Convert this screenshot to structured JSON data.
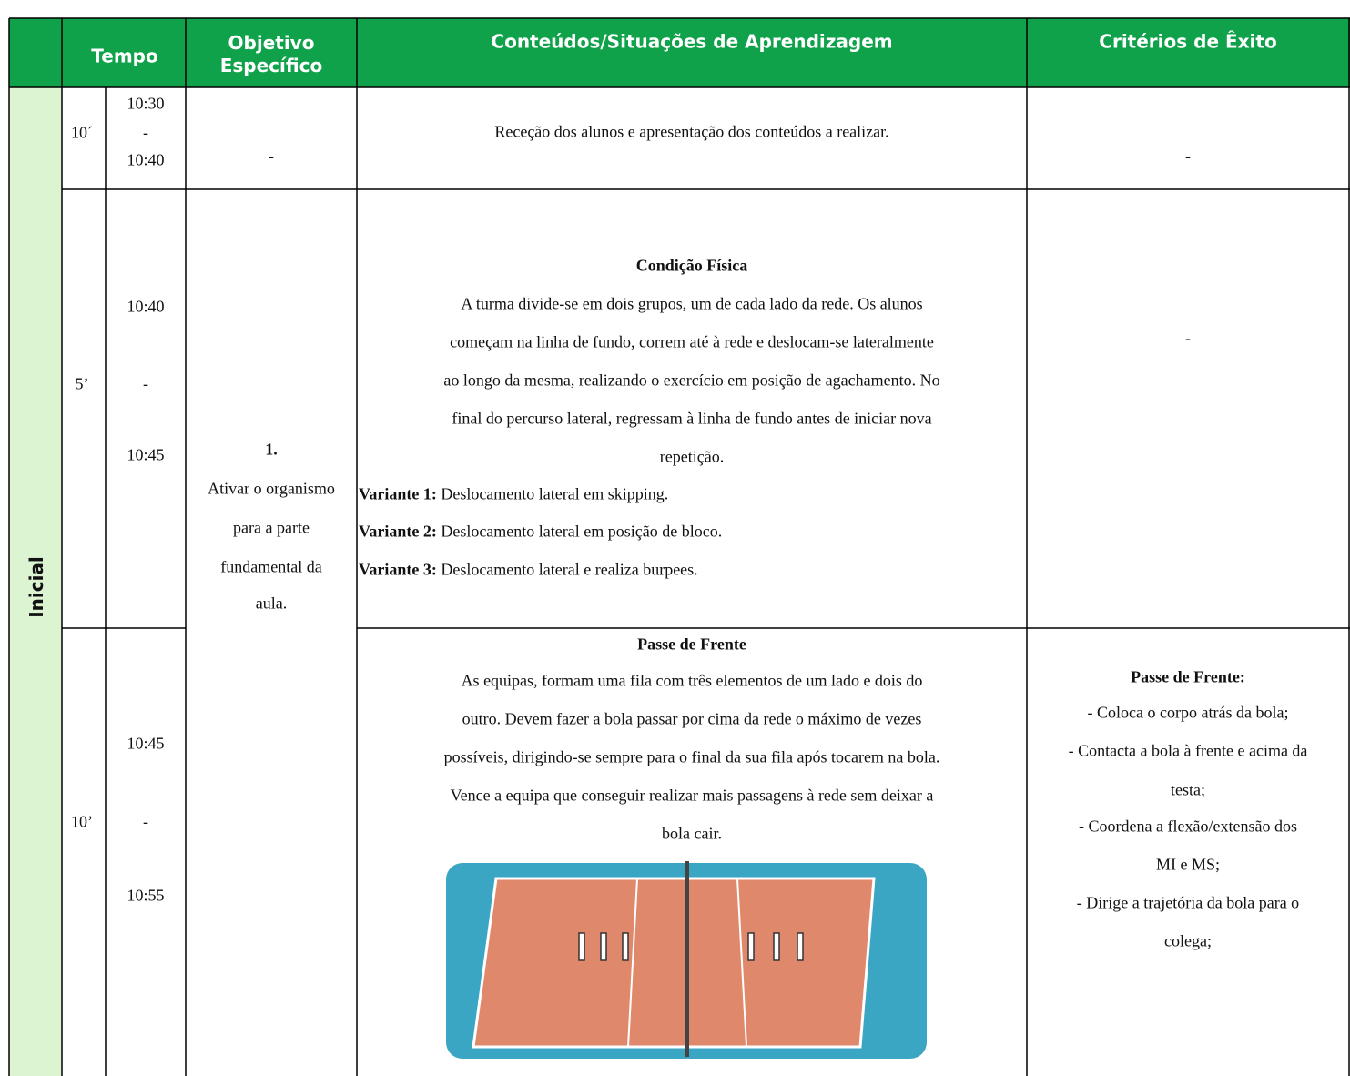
{
  "header": {
    "columns": [
      "Tempo",
      "Objetivo Específico",
      "Conteúdos/Situações de Aprendizagem",
      "Critérios de Êxito"
    ]
  },
  "phase": "Inicial",
  "rows": [
    {
      "duration": "10´",
      "time": [
        "10:30",
        "-",
        "10:40"
      ],
      "objective": "-",
      "content": [
        "Receção dos alunos e apresentação dos conteúdos a realizar."
      ],
      "criteria": "-"
    },
    {
      "duration": "5’",
      "time": [
        "10:40",
        "-",
        "10:45"
      ],
      "content_title": "Condição Física",
      "content": [
        "A turma divide-se em dois grupos, um de cada lado da rede. Os alunos",
        "começam na linha de fundo, correm até à rede e deslocam-se lateralmente",
        "ao longo da mesma, realizando o exercício em posição de agachamento. No",
        "final do percurso lateral, regressam à linha de fundo antes de iniciar nova",
        "repetição."
      ],
      "variants": [
        {
          "label": "Variante 1:",
          "text": "Deslocamento lateral em skipping."
        },
        {
          "label": "Variante 2:",
          "text": "Deslocamento lateral em posição de bloco."
        },
        {
          "label": "Variante 3:",
          "text": "Deslocamento lateral e realiza burpees."
        }
      ],
      "criteria": "-"
    },
    {
      "duration": "10’",
      "time": [
        "10:45",
        "-",
        "10:55"
      ],
      "content_title": "Passe de Frente",
      "content": [
        "As equipas, formam uma fila com três elementos de um lado e dois do",
        "outro. Devem fazer a bola passar por cima da rede o máximo de vezes",
        "possíveis, dirigindo-se sempre para o final da sua fila após tocarem na bola.",
        "Vence a equipa que conseguir realizar mais passagens à rede sem deixar a",
        "bola cair."
      ],
      "criteria_title": "Passe de Frente:",
      "criteria": [
        "- Coloca o corpo atrás da bola;",
        "- Contacta a bola à frente e acima da",
        "testa;",
        "- Coordena a flexão/extensão dos",
        "MI e MS;",
        "- Dirige a trajetória da bola para o",
        "colega;"
      ]
    }
  ],
  "objective": {
    "number": "1.",
    "lines": [
      "Ativar o organismo",
      "para a parte",
      "fundamental da",
      "aula."
    ]
  }
}
